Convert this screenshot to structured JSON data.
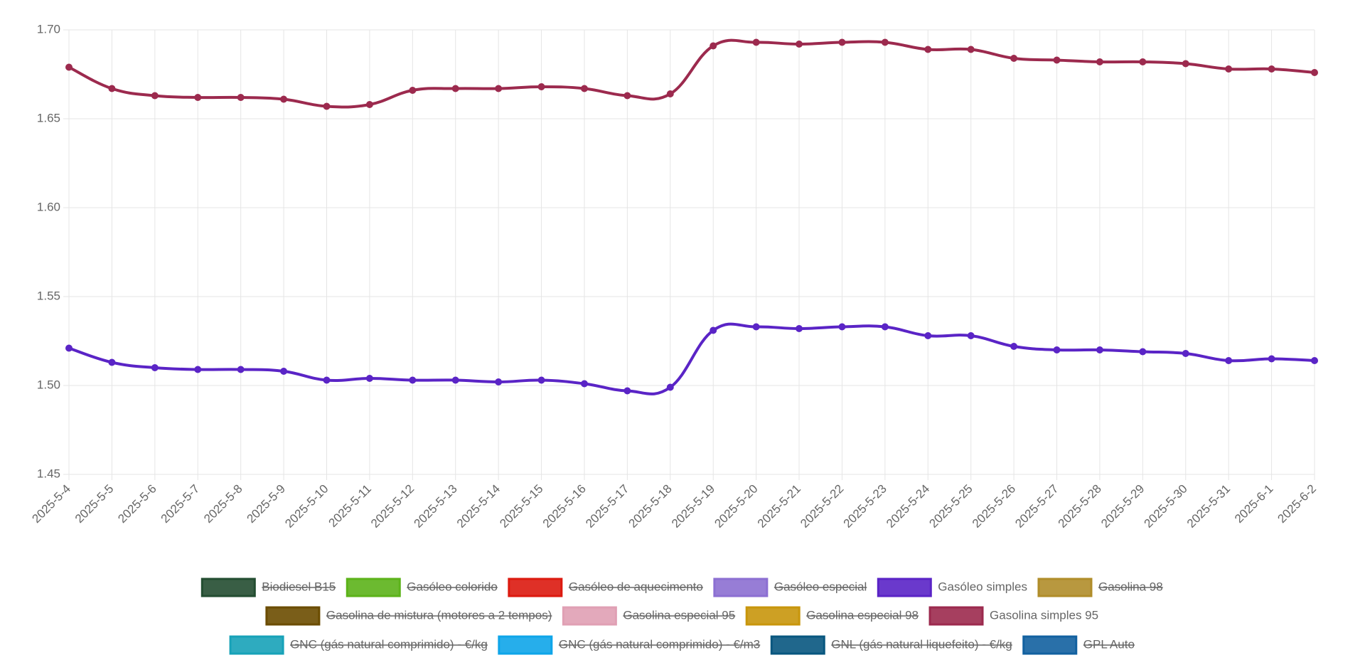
{
  "chart_data": {
    "type": "line",
    "x": [
      "2025-5-4",
      "2025-5-5",
      "2025-5-6",
      "2025-5-7",
      "2025-5-8",
      "2025-5-9",
      "2025-5-10",
      "2025-5-11",
      "2025-5-12",
      "2025-5-13",
      "2025-5-14",
      "2025-5-15",
      "2025-5-16",
      "2025-5-17",
      "2025-5-18",
      "2025-5-19",
      "2025-5-20",
      "2025-5-21",
      "2025-5-22",
      "2025-5-23",
      "2025-5-24",
      "2025-5-25",
      "2025-5-26",
      "2025-5-27",
      "2025-5-28",
      "2025-5-29",
      "2025-5-30",
      "2025-5-31",
      "2025-6-1",
      "2025-6-2"
    ],
    "ylim": [
      1.45,
      1.7
    ],
    "yticks": [
      1.45,
      {
        "value": 1.5,
        "label": "1.50"
      },
      1.55,
      {
        "value": 1.6,
        "label": "1.60"
      },
      1.65,
      {
        "value": 1.7,
        "label": "1.70"
      }
    ],
    "grid": true,
    "legend": "bottom",
    "series": [
      {
        "name": "Biodiesel B15",
        "color": "#234d31",
        "hidden": true
      },
      {
        "name": "Gasóleo colorido",
        "color": "#5cb31a",
        "hidden": true
      },
      {
        "name": "Gasóleo de aquecimento",
        "color": "#dc1a0f",
        "hidden": true
      },
      {
        "name": "Gasóleo especial",
        "color": "#8c6fd2",
        "hidden": true
      },
      {
        "name": "Gasóleo simples",
        "color": "#5a24c6",
        "values": [
          1.521,
          1.513,
          1.51,
          1.509,
          1.509,
          1.508,
          1.503,
          1.504,
          1.503,
          1.503,
          1.502,
          1.503,
          1.501,
          1.497,
          1.499,
          1.531,
          1.533,
          1.532,
          1.533,
          1.533,
          1.528,
          1.528,
          1.522,
          1.52,
          1.52,
          1.519,
          1.518,
          1.514,
          1.515,
          1.514
        ]
      },
      {
        "name": "Gasolina 98",
        "color": "#b08d2a",
        "hidden": true
      },
      {
        "name": "Gasolina de mistura (motores a 2 tempos)",
        "color": "#6b4c00",
        "hidden": true
      },
      {
        "name": "Gasolina especial 95",
        "color": "#e0a0b4",
        "hidden": true
      },
      {
        "name": "Gasolina especial 98",
        "color": "#c8960c",
        "hidden": true
      },
      {
        "name": "Gasolina simples 95",
        "color": "#9c2a4e",
        "values": [
          1.679,
          1.667,
          1.663,
          1.662,
          1.662,
          1.661,
          1.657,
          1.658,
          1.666,
          1.667,
          1.667,
          1.668,
          1.667,
          1.663,
          1.664,
          1.691,
          1.693,
          1.692,
          1.693,
          1.693,
          1.689,
          1.689,
          1.684,
          1.683,
          1.682,
          1.682,
          1.681,
          1.678,
          1.678,
          1.676
        ]
      },
      {
        "name": "GNC (gás natural comprimido) - €/kg",
        "color": "#17a2b8",
        "hidden": true
      },
      {
        "name": "GNC (gás natural comprimido) - €/m3",
        "color": "#0ea5e9",
        "hidden": true
      },
      {
        "name": "GNL (gás natural liquefeito) - €/kg",
        "color": "#08577f",
        "hidden": true
      },
      {
        "name": "GPL Auto",
        "color": "#1261a0",
        "hidden": true
      }
    ]
  }
}
